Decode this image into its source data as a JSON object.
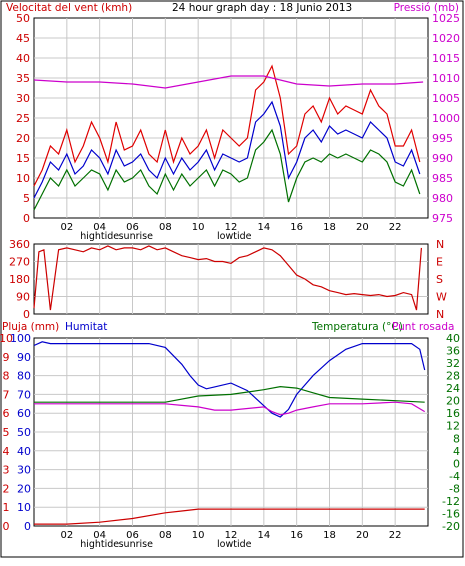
{
  "chart_data": [
    {
      "type": "line",
      "title": "24 hour graph day : 18 Junio 2013",
      "left_axis_label": "Velocitat del vent (kmh)",
      "right_axis_label": "Pressió (mb)",
      "left_ticks": [
        "0",
        "5",
        "10",
        "15",
        "20",
        "25",
        "30",
        "35",
        "40",
        "45",
        "50"
      ],
      "right_ticks": [
        "975",
        "980",
        "985",
        "990",
        "995",
        "1000",
        "1005",
        "1010",
        "1015",
        "1020",
        "1025"
      ],
      "x_ticks": [
        "02",
        "04",
        "06",
        "08",
        "10",
        "12",
        "14",
        "16",
        "18",
        "20",
        "22"
      ],
      "x_annotations": [
        "hightide",
        "sunrise",
        "lowtide"
      ],
      "ylim_left": [
        0,
        50
      ],
      "ylim_right": [
        975,
        1025
      ],
      "x_range_hours": [
        0,
        24
      ],
      "grid": true,
      "colors": {
        "gust": "#e00000",
        "avg": "#0000cc",
        "min": "#007000",
        "pressure": "#cc00cc"
      },
      "series": [
        {
          "key": "gust",
          "x": [
            0,
            0.5,
            1,
            1.5,
            2,
            2.5,
            3,
            3.5,
            4,
            4.5,
            5,
            5.5,
            6,
            6.5,
            7,
            7.5,
            8,
            8.5,
            9,
            9.5,
            10,
            10.5,
            11,
            11.5,
            12,
            12.5,
            13,
            13.5,
            14,
            14.5,
            15,
            15.5,
            16,
            16.5,
            17,
            17.5,
            18,
            18.5,
            19,
            19.5,
            20,
            20.5,
            21,
            21.5,
            22,
            22.5,
            23,
            23.5
          ],
          "values": [
            8,
            12,
            18,
            16,
            22,
            14,
            18,
            24,
            20,
            14,
            24,
            17,
            18,
            22,
            16,
            14,
            22,
            14,
            20,
            16,
            18,
            22,
            15,
            22,
            20,
            18,
            20,
            32,
            34,
            38,
            30,
            16,
            18,
            26,
            28,
            24,
            30,
            26,
            28,
            27,
            26,
            32,
            28,
            26,
            18,
            18,
            22,
            14
          ]
        },
        {
          "key": "avg",
          "x": [
            0,
            0.5,
            1,
            1.5,
            2,
            2.5,
            3,
            3.5,
            4,
            4.5,
            5,
            5.5,
            6,
            6.5,
            7,
            7.5,
            8,
            8.5,
            9,
            9.5,
            10,
            10.5,
            11,
            11.5,
            12,
            12.5,
            13,
            13.5,
            14,
            14.5,
            15,
            15.5,
            16,
            16.5,
            17,
            17.5,
            18,
            18.5,
            19,
            19.5,
            20,
            20.5,
            21,
            21.5,
            22,
            22.5,
            23,
            23.5
          ],
          "values": [
            5,
            9,
            14,
            12,
            16,
            11,
            13,
            17,
            15,
            11,
            17,
            13,
            14,
            16,
            12,
            10,
            15,
            11,
            15,
            12,
            14,
            17,
            12,
            16,
            15,
            14,
            15,
            24,
            26,
            29,
            23,
            10,
            14,
            20,
            22,
            19,
            23,
            21,
            22,
            21,
            20,
            24,
            22,
            20,
            14,
            13,
            17,
            11
          ]
        },
        {
          "key": "min",
          "x": [
            0,
            0.5,
            1,
            1.5,
            2,
            2.5,
            3,
            3.5,
            4,
            4.5,
            5,
            5.5,
            6,
            6.5,
            7,
            7.5,
            8,
            8.5,
            9,
            9.5,
            10,
            10.5,
            11,
            11.5,
            12,
            12.5,
            13,
            13.5,
            14,
            14.5,
            15,
            15.5,
            16,
            16.5,
            17,
            17.5,
            18,
            18.5,
            19,
            19.5,
            20,
            20.5,
            21,
            21.5,
            22,
            22.5,
            23,
            23.5
          ],
          "values": [
            2,
            6,
            10,
            8,
            12,
            8,
            10,
            12,
            11,
            7,
            12,
            9,
            10,
            12,
            8,
            6,
            11,
            7,
            11,
            8,
            10,
            12,
            8,
            12,
            11,
            9,
            10,
            17,
            19,
            22,
            16,
            4,
            10,
            14,
            15,
            14,
            16,
            15,
            16,
            15,
            14,
            17,
            16,
            14,
            9,
            8,
            12,
            6
          ]
        },
        {
          "key": "pressure",
          "x": [
            0,
            2,
            4,
            6,
            8,
            10,
            12,
            14,
            16,
            18,
            20,
            22,
            23.7
          ],
          "values": [
            1009.5,
            1009,
            1009,
            1008.5,
            1007.5,
            1009,
            1010.5,
            1010.5,
            1008.5,
            1008,
            1008.5,
            1008.5,
            1009
          ]
        }
      ]
    },
    {
      "type": "line",
      "title": "",
      "left_ticks": [
        "0",
        "90",
        "180",
        "270",
        "360"
      ],
      "right_labels": [
        "N",
        "W",
        "S",
        "E",
        "N"
      ],
      "ylim": [
        0,
        360
      ],
      "grid": true,
      "colors": {
        "direction": "#cc0000"
      },
      "series": [
        {
          "key": "direction",
          "x": [
            0,
            0.3,
            0.6,
            1,
            1.5,
            2,
            2.5,
            3,
            3.5,
            4,
            4.5,
            5,
            5.5,
            6,
            6.5,
            7,
            7.5,
            8,
            8.5,
            9,
            9.5,
            10,
            10.5,
            11,
            11.5,
            12,
            12.5,
            13,
            13.5,
            14,
            14.5,
            15,
            15.5,
            16,
            16.5,
            17,
            17.5,
            18,
            18.5,
            19,
            19.5,
            20,
            20.5,
            21,
            21.5,
            22,
            22.5,
            23,
            23.3,
            23.6
          ],
          "values": [
            30,
            320,
            330,
            20,
            330,
            340,
            330,
            320,
            340,
            330,
            350,
            330,
            340,
            340,
            330,
            350,
            330,
            340,
            320,
            300,
            290,
            280,
            285,
            270,
            270,
            260,
            290,
            300,
            320,
            340,
            330,
            300,
            250,
            200,
            180,
            150,
            140,
            120,
            110,
            100,
            105,
            100,
            95,
            100,
            90,
            95,
            110,
            100,
            20,
            340
          ]
        }
      ]
    },
    {
      "type": "line",
      "title": "",
      "left_axis_label": "Pluja (mm)",
      "left_axis_label_2": "Humitat",
      "right_axis_label": "Temperatura (°C)",
      "right_axis_label_2": "Punt rosada",
      "left_ticks_rain": [
        "0",
        "1",
        "2",
        "3",
        "4",
        "5",
        "6",
        "7",
        "8",
        "9",
        "10"
      ],
      "left_ticks_hum": [
        "0",
        "10",
        "20",
        "30",
        "40",
        "50",
        "60",
        "70",
        "80",
        "90",
        "100"
      ],
      "right_ticks": [
        "-20",
        "-16",
        "-12",
        "-8",
        "-4",
        "0",
        "4",
        "8",
        "12",
        "16",
        "20",
        "24",
        "28",
        "32",
        "36",
        "40"
      ],
      "x_ticks": [
        "02",
        "04",
        "06",
        "08",
        "10",
        "12",
        "14",
        "16",
        "18",
        "20",
        "22"
      ],
      "x_annotations": [
        "hightide",
        "sunrise",
        "lowtide"
      ],
      "ylim_rain": [
        0,
        10
      ],
      "ylim_hum": [
        0,
        100
      ],
      "ylim_temp": [
        -20,
        40
      ],
      "grid": true,
      "colors": {
        "humidity": "#0000cc",
        "temperature": "#007000",
        "dewpoint": "#cc00cc",
        "rain": "#cc0000"
      },
      "series": [
        {
          "key": "humidity",
          "x": [
            0,
            0.5,
            1,
            2,
            3,
            4,
            5,
            6,
            7,
            8,
            9,
            9.5,
            10,
            10.5,
            11,
            12,
            13,
            14,
            14.5,
            15,
            15.5,
            16,
            17,
            18,
            19,
            20,
            21,
            22,
            23,
            23.5,
            23.8
          ],
          "values": [
            96,
            98,
            97,
            97,
            97,
            97,
            97,
            97,
            97,
            95,
            86,
            80,
            75,
            73,
            74,
            76,
            72,
            64,
            60,
            58,
            62,
            70,
            80,
            88,
            94,
            97,
            97,
            97,
            97,
            94,
            83
          ]
        },
        {
          "key": "temperature",
          "x": [
            0,
            2,
            4,
            6,
            8,
            10,
            12,
            14,
            15,
            16,
            17,
            18,
            20,
            22,
            23.8
          ],
          "values": [
            19.5,
            19.5,
            19.5,
            19.5,
            19.5,
            21.5,
            22,
            23.5,
            24.5,
            24,
            22.5,
            21,
            20.5,
            20,
            19.5
          ]
        },
        {
          "key": "dewpoint",
          "x": [
            0,
            2,
            4,
            6,
            8,
            9,
            10,
            11,
            12,
            13,
            14,
            14.5,
            15,
            15.5,
            16,
            17,
            18,
            20,
            22,
            23,
            23.8
          ],
          "values": [
            19,
            19,
            19,
            19,
            19,
            18.5,
            18,
            17,
            17,
            17.5,
            18,
            16.5,
            15.5,
            16,
            17,
            18,
            19,
            19,
            19.5,
            19,
            16.5
          ]
        },
        {
          "key": "rain",
          "x": [
            0,
            2,
            4,
            6,
            8,
            9,
            10,
            12,
            14,
            16,
            18,
            20,
            22,
            23.8
          ],
          "values": [
            0.1,
            0.1,
            0.2,
            0.4,
            0.7,
            0.8,
            0.9,
            0.9,
            0.9,
            0.9,
            0.9,
            0.9,
            0.9,
            0.9
          ]
        }
      ]
    }
  ]
}
